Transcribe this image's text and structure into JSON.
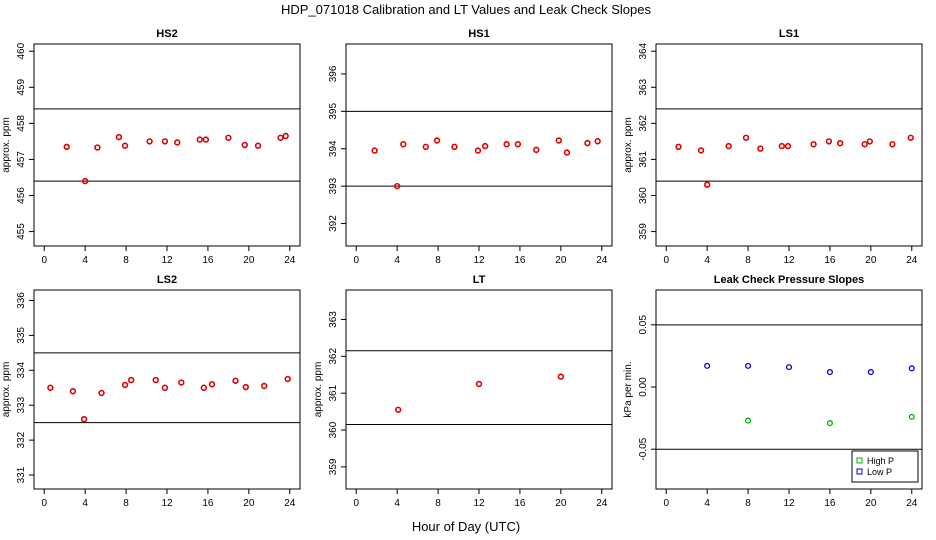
{
  "figure": {
    "title": "HDP_071018  Calibration and LT Values and Leak Check Slopes",
    "xlabel": "Hour of Day (UTC)"
  },
  "colors": {
    "points": "#dd0000",
    "high_p": "#00b000",
    "low_p": "#0000cc",
    "axis": "#000000"
  },
  "chart_data": [
    {
      "id": "hs2",
      "type": "scatter",
      "title": "HS2",
      "ylabel": "approx. ppm",
      "xlim": [
        -1,
        25
      ],
      "ylim": [
        454.6,
        460.2
      ],
      "xticks": [
        0,
        4,
        8,
        12,
        16,
        20,
        24
      ],
      "yticks": [
        455,
        456,
        457,
        458,
        459,
        460
      ],
      "hlines": [
        458.4,
        456.4
      ],
      "series": [
        {
          "x": [
            2.2,
            4.0,
            5.2,
            7.3,
            7.9,
            10.3,
            11.8,
            13.0,
            15.2,
            15.8,
            18.0,
            19.6,
            20.9,
            23.1,
            23.6
          ],
          "y": [
            457.35,
            456.4,
            457.33,
            457.62,
            457.38,
            457.5,
            457.5,
            457.47,
            457.55,
            457.55,
            457.6,
            457.4,
            457.38,
            457.6,
            457.65
          ]
        }
      ]
    },
    {
      "id": "hs1",
      "type": "scatter",
      "title": "HS1",
      "ylabel": "",
      "xlim": [
        -1,
        25
      ],
      "ylim": [
        391.4,
        396.8
      ],
      "xticks": [
        0,
        4,
        8,
        12,
        16,
        20,
        24
      ],
      "yticks": [
        392,
        393,
        394,
        395,
        396
      ],
      "hlines": [
        395.0,
        393.0
      ],
      "series": [
        {
          "x": [
            1.8,
            4.0,
            4.6,
            6.8,
            7.9,
            9.6,
            11.9,
            12.6,
            14.7,
            15.8,
            17.6,
            19.8,
            20.6,
            22.6,
            23.6
          ],
          "y": [
            393.95,
            393.0,
            394.12,
            394.05,
            394.22,
            394.05,
            393.95,
            394.07,
            394.12,
            394.12,
            393.97,
            394.22,
            393.9,
            394.15,
            394.2
          ]
        }
      ]
    },
    {
      "id": "ls1",
      "type": "scatter",
      "title": "LS1",
      "ylabel": "approx. ppm",
      "xlim": [
        -1,
        25
      ],
      "ylim": [
        358.6,
        364.2
      ],
      "xticks": [
        0,
        4,
        8,
        12,
        16,
        20,
        24
      ],
      "yticks": [
        359,
        360,
        361,
        362,
        363,
        364
      ],
      "hlines": [
        362.4,
        360.4
      ],
      "series": [
        {
          "x": [
            1.2,
            3.4,
            4.0,
            6.1,
            7.8,
            9.2,
            11.3,
            11.9,
            14.4,
            15.9,
            17.0,
            19.4,
            19.9,
            22.1,
            23.9
          ],
          "y": [
            361.35,
            361.25,
            360.3,
            361.37,
            361.6,
            361.3,
            361.37,
            361.37,
            361.42,
            361.5,
            361.45,
            361.42,
            361.5,
            361.42,
            361.6
          ]
        }
      ]
    },
    {
      "id": "ls2",
      "type": "scatter",
      "title": "LS2",
      "ylabel": "approx. ppm",
      "xlim": [
        -1,
        25
      ],
      "ylim": [
        330.6,
        336.3
      ],
      "xticks": [
        0,
        4,
        8,
        12,
        16,
        20,
        24
      ],
      "yticks": [
        331,
        332,
        333,
        334,
        335,
        336
      ],
      "hlines": [
        334.5,
        332.5
      ],
      "series": [
        {
          "x": [
            0.6,
            2.8,
            3.9,
            5.6,
            7.9,
            8.5,
            10.9,
            11.8,
            13.4,
            15.6,
            16.4,
            18.7,
            19.7,
            21.5,
            23.8
          ],
          "y": [
            333.5,
            333.4,
            332.6,
            333.35,
            333.58,
            333.72,
            333.72,
            333.5,
            333.65,
            333.5,
            333.6,
            333.7,
            333.52,
            333.55,
            333.75
          ]
        }
      ]
    },
    {
      "id": "lt",
      "type": "scatter",
      "title": "LT",
      "ylabel": "approx. ppm",
      "xlim": [
        -1,
        25
      ],
      "ylim": [
        358.4,
        363.8
      ],
      "xticks": [
        0,
        4,
        8,
        12,
        16,
        20,
        24
      ],
      "yticks": [
        359,
        360,
        361,
        362,
        363
      ],
      "hlines": [
        362.15,
        360.15
      ],
      "series": [
        {
          "x": [
            4.1,
            12.0,
            20.0
          ],
          "y": [
            360.55,
            361.25,
            361.45
          ]
        }
      ]
    },
    {
      "id": "leak",
      "type": "scatter",
      "title": "Leak Check Pressure Slopes",
      "ylabel": "kPa per min.",
      "xlim": [
        -1,
        25
      ],
      "ylim": [
        -0.082,
        0.078
      ],
      "xticks": [
        0,
        4,
        8,
        12,
        16,
        20,
        24
      ],
      "yticks": [
        -0.05,
        0.0,
        0.05
      ],
      "ytick_labels": [
        "-0.05",
        "0.00",
        "0.05"
      ],
      "hlines": [
        0.05,
        -0.05
      ],
      "legend": {
        "position": "bottom-right",
        "entries": [
          "High P",
          "Low P"
        ]
      },
      "series": [
        {
          "name": "High P",
          "x": [
            8,
            16,
            24
          ],
          "y": [
            -0.027,
            -0.029,
            -0.024
          ]
        },
        {
          "name": "Low P",
          "x": [
            4,
            8,
            12,
            16,
            20,
            24
          ],
          "y": [
            0.017,
            0.017,
            0.016,
            0.012,
            0.012,
            0.015
          ]
        }
      ]
    }
  ]
}
